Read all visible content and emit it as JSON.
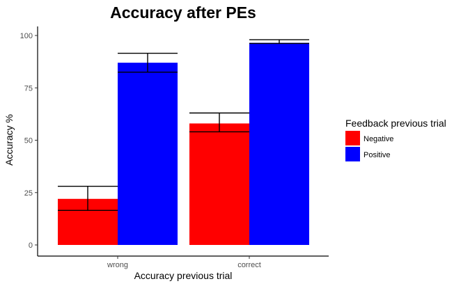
{
  "chart_data": {
    "type": "bar",
    "title": "Accuracy after PEs",
    "xlabel": "Accuracy previous trial",
    "ylabel": "Accuracy %",
    "categories": [
      "wrong",
      "correct"
    ],
    "ylim": [
      0,
      100
    ],
    "yticks": [
      0,
      25,
      50,
      75,
      100
    ],
    "grid": false,
    "legend": {
      "title": "Feedback previous trial",
      "position": "right"
    },
    "series": [
      {
        "name": "Negative",
        "color": "#ff0000",
        "values": [
          22,
          58
        ],
        "error_low": [
          16.5,
          54
        ],
        "error_high": [
          28,
          63
        ]
      },
      {
        "name": "Positive",
        "color": "#0000ff",
        "values": [
          87,
          96.5
        ],
        "error_low": [
          82.5,
          96.2
        ],
        "error_high": [
          91.5,
          98
        ]
      }
    ]
  }
}
